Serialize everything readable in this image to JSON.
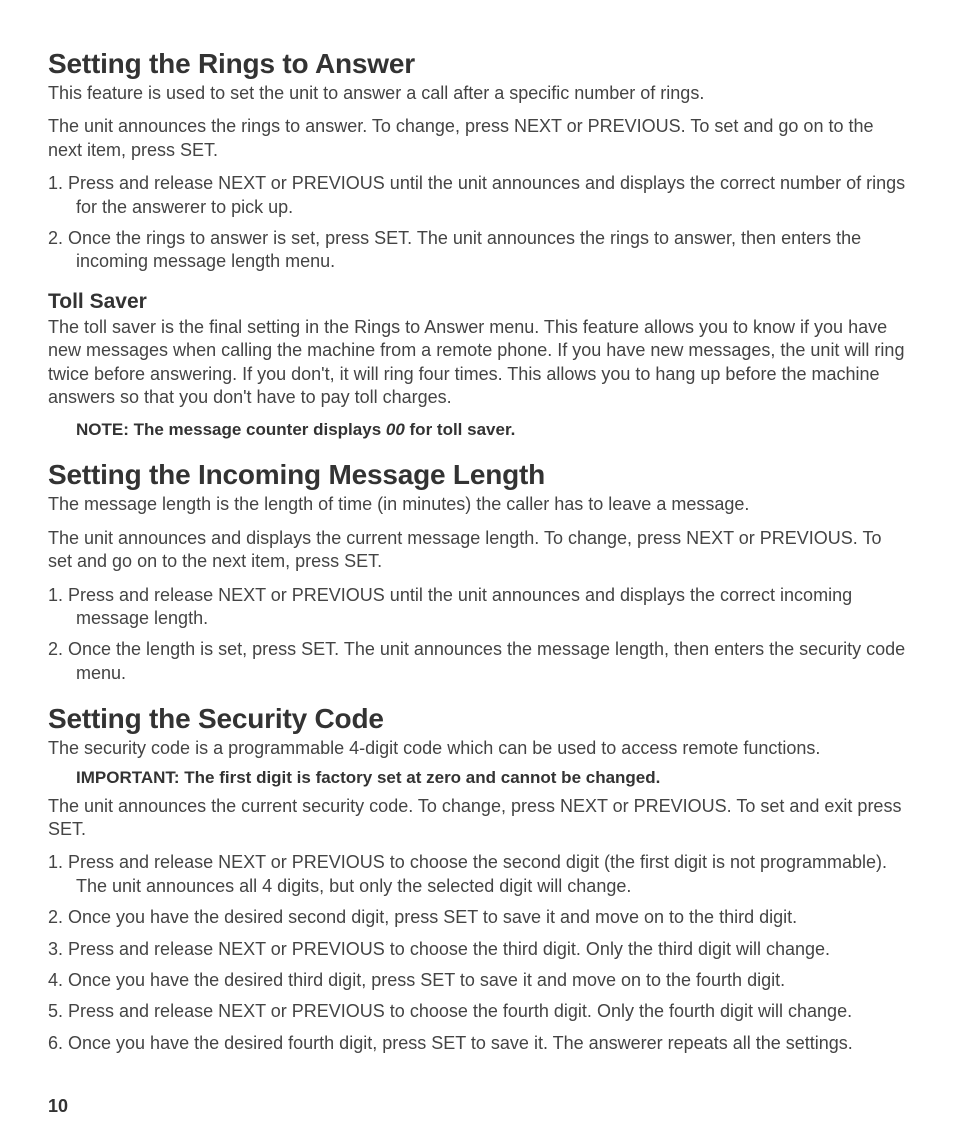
{
  "page_number": "10",
  "sections": [
    {
      "heading": "Setting the Rings to Answer",
      "intro": [
        "This feature is used to set the unit to answer a call after a specific number of rings.",
        "The unit announces the rings to answer. To change, press NEXT or PREVIOUS. To set and go on to the next item, press SET."
      ],
      "steps": [
        "1. Press and release NEXT or PREVIOUS until the unit announces and displays the correct number of rings for the answerer to pick up.",
        "2. Once the rings to answer is set, press SET. The unit announces the rings to answer, then enters the incoming message length menu."
      ],
      "sub": {
        "heading": "Toll Saver",
        "body": "The toll saver is the final setting in the Rings to Answer menu. This feature allows you to know if you have new messages when calling the machine from a remote phone. If you have new messages, the unit will ring twice before answering.  If you don't, it will ring four times. This allows you to hang up before the machine answers so that you don't have to pay toll charges.",
        "note_pre": "NOTE: The message counter displays ",
        "note_em": "00",
        "note_post": "  for toll saver."
      }
    },
    {
      "heading": "Setting the Incoming Message Length",
      "intro": [
        "The message length is the length of time (in minutes) the caller has to leave a message.",
        "The unit announces and displays the current message length. To change, press NEXT or PREVIOUS. To set and go on to the next item, press SET."
      ],
      "steps": [
        "1.  Press and release NEXT or PREVIOUS until the unit announces and displays the correct incoming message length.",
        "2.  Once the length is set, press SET. The unit announces the message length, then enters the security code menu."
      ]
    },
    {
      "heading": "Setting the Security Code",
      "intro_first": "The security code is a programmable 4-digit code which can be used to access remote functions.",
      "important": "IMPORTANT: The first digit is factory set at zero and cannot be changed.",
      "intro_second": "The unit announces the current security code. To change, press NEXT or PREVIOUS. To set and exit press SET.",
      "steps": [
        "1.  Press and release NEXT or PREVIOUS to choose the second digit (the first digit is not programmable). The unit announces all 4 digits, but only the selected digit will change.",
        "2.  Once you have the desired second digit, press SET to save it and move on to the third digit.",
        "3.  Press and release NEXT or PREVIOUS to choose the third digit. Only the third digit will change.",
        "4.  Once you have the desired third digit, press SET to save it and move on to the fourth digit.",
        "5.  Press and release NEXT or PREVIOUS to choose the fourth digit. Only the fourth digit will change.",
        "6.  Once you have the desired fourth digit, press SET to save it. The answerer repeats all the settings."
      ]
    }
  ]
}
